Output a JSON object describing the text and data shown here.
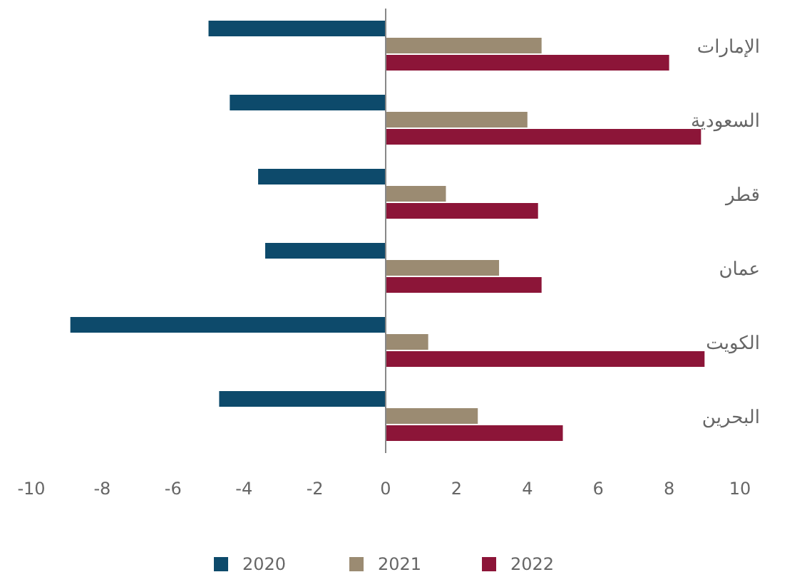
{
  "chart_data": {
    "type": "bar",
    "orientation": "horizontal",
    "categories": [
      "الإمارات",
      "السعودية",
      "قطر",
      "عمان",
      "الكويت",
      "البحرين"
    ],
    "series": [
      {
        "name": "2020",
        "color": "#0d4a6b",
        "values": [
          -5.0,
          -4.4,
          -3.6,
          -3.4,
          -8.9,
          -4.7
        ]
      },
      {
        "name": "2021",
        "color": "#9b8b72",
        "values": [
          4.4,
          4.0,
          1.7,
          3.2,
          1.2,
          2.6
        ]
      },
      {
        "name": "2022",
        "color": "#8c1538",
        "values": [
          8.0,
          8.9,
          4.3,
          4.4,
          9.0,
          5.0
        ]
      }
    ],
    "xlim": [
      -10,
      10
    ],
    "xticks": [
      -10,
      -8,
      -6,
      -4,
      -2,
      0,
      2,
      4,
      6,
      8,
      10
    ],
    "ref_lines": [
      {
        "axis": "x",
        "value": 0,
        "color": "#888888"
      }
    ],
    "legend": "bottom"
  }
}
